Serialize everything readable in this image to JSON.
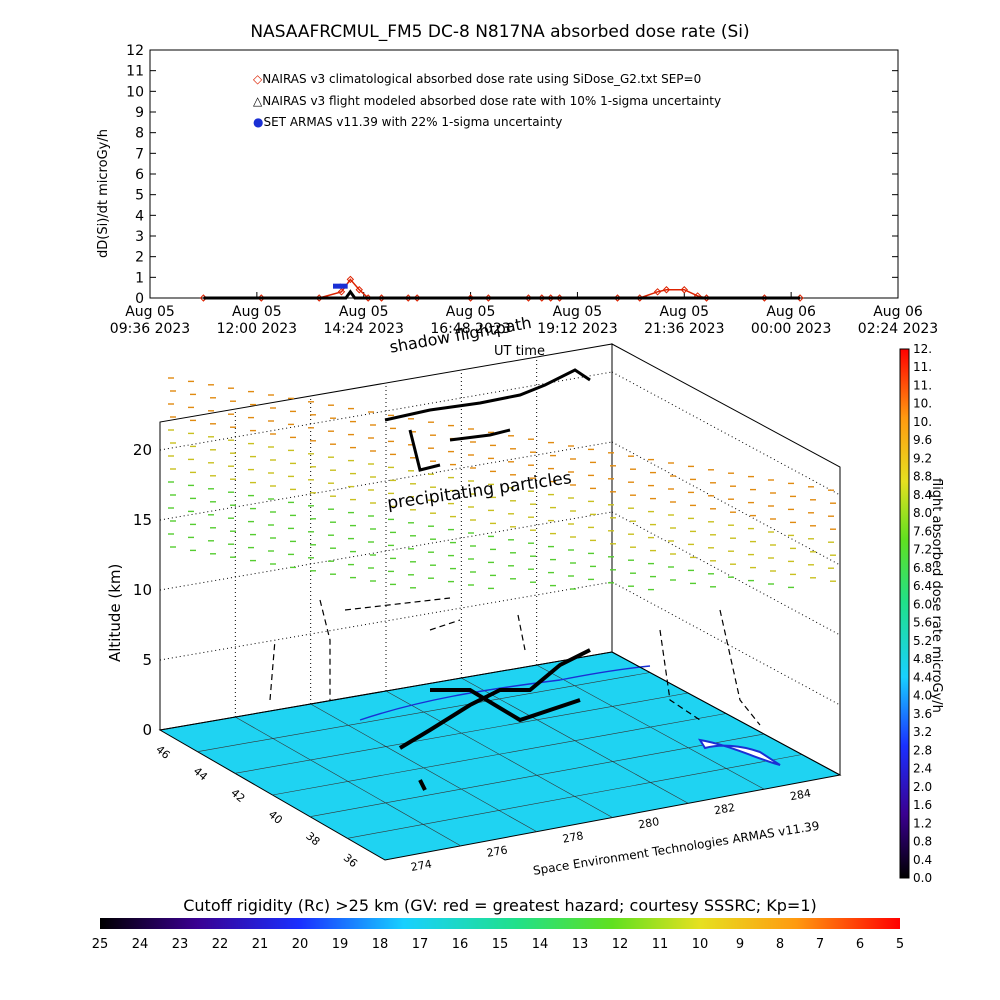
{
  "title": "NASAAFRCMUL_FM5 DC-8   N817NA absorbed dose rate (Si)",
  "chart_data": [
    {
      "type": "line",
      "title": "NASAAFRCMUL_FM5 DC-8   N817NA absorbed dose rate (Si)",
      "xlabel": "UT time",
      "ylabel": "dD(Si)/dt microGy/h",
      "ylim": [
        0,
        12
      ],
      "yticks": [
        "0",
        "1",
        "2",
        "3",
        "4",
        "5",
        "6",
        "7",
        "8",
        "9",
        "10",
        "11",
        "12"
      ],
      "xticks": [
        {
          "day": "Aug 05",
          "time": "09:36 2023"
        },
        {
          "day": "Aug 05",
          "time": "12:00 2023"
        },
        {
          "day": "Aug 05",
          "time": "14:24 2023"
        },
        {
          "day": "Aug 05",
          "time": "16:48 2023"
        },
        {
          "day": "Aug 05",
          "time": "19:12 2023"
        },
        {
          "day": "Aug 05",
          "time": "21:36 2023"
        },
        {
          "day": "Aug 06",
          "time": "00:00 2023"
        },
        {
          "day": "Aug 06",
          "time": "02:24 2023"
        }
      ],
      "xlim_hours": [
        0,
        16.8
      ],
      "legend_position": "top-center",
      "series": [
        {
          "name": "NAIRAS v3 climatological absorbed dose rate using SiDose_G2.txt SEP=0",
          "color": "#dd2200",
          "marker": "diamond",
          "x": [
            1.2,
            2.5,
            3.8,
            4.3,
            4.5,
            4.7,
            4.9,
            5.2,
            5.8,
            6.0,
            7.2,
            7.6,
            8.5,
            8.8,
            9.0,
            9.2,
            10.5,
            11.0,
            11.4,
            11.6,
            12.0,
            12.3,
            12.5,
            13.8,
            14.6
          ],
          "y": [
            0,
            0,
            0,
            0.3,
            0.9,
            0.4,
            0,
            0,
            0,
            0,
            0,
            0,
            0,
            0,
            0,
            0,
            0,
            0,
            0.3,
            0.4,
            0.4,
            0.1,
            0,
            0,
            0
          ]
        },
        {
          "name": "NAIRAS v3 flight modeled absorbed dose rate with 10% 1-sigma uncertainty",
          "color": "#000000",
          "marker": "triangle",
          "x": [
            1.2,
            4.0,
            4.4,
            4.5,
            4.6,
            4.9,
            14.6
          ],
          "y": [
            0,
            0,
            0,
            0.3,
            0,
            0,
            0
          ]
        },
        {
          "name": "SET ARMAS v11.39 with 22% 1-sigma uncertainty",
          "color": "#1a2fd4",
          "marker": "circle",
          "x": [
            4.2,
            4.35
          ],
          "y": [
            0.5,
            0.5
          ]
        }
      ]
    },
    {
      "type": "scatter",
      "title": "",
      "zlabel": "Altitude (km)",
      "zticks": [
        "0",
        "5",
        "10",
        "15",
        "20"
      ],
      "lat_ticks": [
        "46",
        "44",
        "42",
        "40",
        "38",
        "36"
      ],
      "lon_ticks": [
        "274",
        "276",
        "278",
        "280",
        "282",
        "284"
      ],
      "annotations": [
        "precipitating particles",
        "shadow flightpath",
        "Space Environment Technologies ARMAS v11.39"
      ],
      "colorbar_label": "flight absorbed dose rate microGy/h",
      "colorbar_ticks": [
        "0.0",
        "0.4",
        "0.8",
        "1.2",
        "1.6",
        "2.0",
        "2.4",
        "2.8",
        "3.2",
        "3.6",
        "4.0",
        "4.4",
        "4.8",
        "5.2",
        "5.6",
        "6.0",
        "6.4",
        "6.8",
        "7.2",
        "7.6",
        "8.0",
        "8.4",
        "8.8",
        "9.2",
        "9.6",
        "10.",
        "10.",
        "11.",
        "11.",
        "12."
      ]
    },
    {
      "type": "heatmap",
      "title": "Cutoff rigidity (Rc) >25 km (GV: red = greatest hazard; courtesy SSSRC; Kp=1)",
      "colorbar_ticks": [
        "25",
        "24",
        "23",
        "22",
        "21",
        "20",
        "19",
        "18",
        "17",
        "16",
        "15",
        "14",
        "13",
        "12",
        "11",
        "10",
        "9",
        "8",
        "7",
        "6",
        "5"
      ]
    }
  ]
}
